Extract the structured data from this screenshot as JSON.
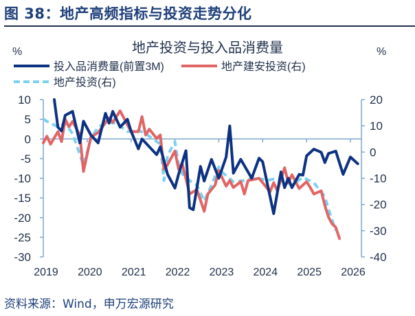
{
  "figure_title": "图 38：地产高频指标与投资走势分化",
  "source": "资料来源：Wind，申万宏源研究",
  "colors": {
    "title": "#1f3f7a",
    "axis": "#7ea6d0",
    "dark_blue": "#0d3282",
    "red": "#e06666",
    "light_blue": "#7dd0f0"
  },
  "chart_data": {
    "type": "line",
    "title": "地产投资与投入品消费量",
    "left_unit": "%",
    "right_unit": "%",
    "ylim_left": [
      -30,
      10
    ],
    "yticks_left": [
      "10",
      "5",
      "0",
      "-5",
      "-10",
      "-15",
      "-20",
      "-25",
      "-30"
    ],
    "ylim_right": [
      -40,
      20
    ],
    "yticks_right": [
      "20",
      "10",
      "0",
      "-10",
      "-20",
      "-30",
      "-40"
    ],
    "xlim": [
      "2019-01",
      "2026-04"
    ],
    "xticks": [
      "2019",
      "2020",
      "2021",
      "2022",
      "2023",
      "2024",
      "2025",
      "2026"
    ],
    "grid": false,
    "legend_position": "top-left",
    "series": [
      {
        "name": "投入品消费量(前置3M)",
        "axis": "left",
        "style": "solid",
        "color": "#0d3282",
        "points": [
          [
            "2019-04",
            10
          ],
          [
            "2019-05",
            3
          ],
          [
            "2019-06",
            2
          ],
          [
            "2019-07",
            6
          ],
          [
            "2019-09",
            7
          ],
          [
            "2019-11",
            -1
          ],
          [
            "2019-12",
            4.5
          ],
          [
            "2020-02",
            1
          ],
          [
            "2020-04",
            -1
          ],
          [
            "2020-06",
            6.5
          ],
          [
            "2020-07",
            4
          ],
          [
            "2020-08",
            7
          ],
          [
            "2020-10",
            3
          ],
          [
            "2020-12",
            5
          ],
          [
            "2021-01",
            2
          ],
          [
            "2021-03",
            -2.5
          ],
          [
            "2021-04",
            0
          ],
          [
            "2021-06",
            -2
          ],
          [
            "2021-08",
            -4
          ],
          [
            "2021-09",
            -2
          ],
          [
            "2021-11",
            -9
          ],
          [
            "2022-01",
            -12.5
          ],
          [
            "2022-02",
            -9
          ],
          [
            "2022-04",
            -3
          ],
          [
            "2022-05",
            -17.5
          ],
          [
            "2022-06",
            -18
          ],
          [
            "2022-08",
            -7
          ],
          [
            "2022-09",
            -10.7
          ],
          [
            "2022-11",
            -5.2
          ],
          [
            "2023-01",
            -10
          ],
          [
            "2023-03",
            -4.6
          ],
          [
            "2023-04",
            3.3
          ],
          [
            "2023-05",
            -8.7
          ],
          [
            "2023-07",
            -5.2
          ],
          [
            "2023-10",
            -10
          ],
          [
            "2023-12",
            -4.9
          ],
          [
            "2024-01",
            -5.8
          ],
          [
            "2024-04",
            -19
          ],
          [
            "2024-06",
            -8.4
          ],
          [
            "2024-07",
            -12.4
          ],
          [
            "2024-08",
            -10
          ],
          [
            "2024-09",
            -12.4
          ],
          [
            "2024-11",
            -9
          ],
          [
            "2024-12",
            -9.2
          ],
          [
            "2025-01",
            -4.3
          ],
          [
            "2025-03",
            -2.6
          ],
          [
            "2025-05",
            -3.4
          ],
          [
            "2025-06",
            -6
          ],
          [
            "2025-07",
            -3.7
          ],
          [
            "2025-09",
            -3.1
          ],
          [
            "2025-11",
            -9
          ],
          [
            "2026-01",
            -4.6
          ],
          [
            "2026-03",
            -6.3
          ]
        ]
      },
      {
        "name": "地产建安投资(右)",
        "axis": "right",
        "style": "solid",
        "color": "#e06666",
        "points": [
          [
            "2019-01",
            3.5
          ],
          [
            "2019-02",
            6
          ],
          [
            "2019-03",
            3
          ],
          [
            "2019-05",
            7.8
          ],
          [
            "2019-06",
            4
          ],
          [
            "2019-07",
            12.6
          ],
          [
            "2019-08",
            9.6
          ],
          [
            "2019-09",
            11.7
          ],
          [
            "2019-11",
            6.5
          ],
          [
            "2019-12",
            -7.4
          ],
          [
            "2020-02",
            5.7
          ],
          [
            "2020-04",
            7.4
          ],
          [
            "2020-07",
            13
          ],
          [
            "2020-08",
            11.3
          ],
          [
            "2020-10",
            15.7
          ],
          [
            "2021-01",
            7.8
          ],
          [
            "2021-03",
            7.8
          ],
          [
            "2021-04",
            13.5
          ],
          [
            "2021-05",
            6.5
          ],
          [
            "2021-06",
            8.7
          ],
          [
            "2021-08",
            5.2
          ],
          [
            "2021-09",
            6.5
          ],
          [
            "2021-10",
            -6.5
          ],
          [
            "2021-11",
            -4.8
          ],
          [
            "2022-01",
            0.4
          ],
          [
            "2022-02",
            -6.5
          ],
          [
            "2022-03",
            -4.3
          ],
          [
            "2022-05",
            -16
          ],
          [
            "2022-07",
            -14.3
          ],
          [
            "2022-09",
            -22.6
          ],
          [
            "2022-10",
            -16
          ],
          [
            "2022-12",
            -12.6
          ],
          [
            "2023-01",
            -7
          ],
          [
            "2023-03",
            -13
          ],
          [
            "2023-04",
            -10.9
          ],
          [
            "2023-05",
            -13.5
          ],
          [
            "2023-07",
            -11.3
          ],
          [
            "2023-08",
            -16
          ],
          [
            "2023-09",
            -10.9
          ],
          [
            "2023-12",
            -10
          ],
          [
            "2024-03",
            -15.2
          ],
          [
            "2024-04",
            -11.7
          ],
          [
            "2024-05",
            -14.8
          ],
          [
            "2024-07",
            -6
          ],
          [
            "2024-08",
            -11.7
          ],
          [
            "2024-09",
            -8.7
          ],
          [
            "2024-11",
            -13.9
          ],
          [
            "2025-01",
            -11.3
          ],
          [
            "2025-02",
            -13.5
          ],
          [
            "2025-03",
            -16
          ],
          [
            "2025-05",
            -14.8
          ],
          [
            "2025-06",
            -20.4
          ],
          [
            "2025-07",
            -24.8
          ],
          [
            "2025-08",
            -27.4
          ],
          [
            "2025-09",
            -28.7
          ],
          [
            "2025-10",
            -33
          ]
        ]
      },
      {
        "name": "地产投资(右)",
        "axis": "right",
        "style": "dashed",
        "color": "#7dd0f0",
        "points": [
          [
            "2019-01",
            12.6
          ],
          [
            "2019-02",
            11.7
          ],
          [
            "2019-05",
            9.6
          ],
          [
            "2019-07",
            10.9
          ],
          [
            "2019-09",
            7
          ],
          [
            "2019-12",
            -5
          ],
          [
            "2020-02",
            5
          ],
          [
            "2020-04",
            9.6
          ],
          [
            "2020-07",
            11.3
          ],
          [
            "2020-09",
            10.9
          ],
          [
            "2020-12",
            7.8
          ],
          [
            "2021-03",
            8.3
          ],
          [
            "2021-05",
            7
          ],
          [
            "2021-09",
            3
          ],
          [
            "2021-10",
            -10.9
          ],
          [
            "2021-11",
            -1.3
          ],
          [
            "2022-01",
            3.9
          ],
          [
            "2022-02",
            -4.8
          ],
          [
            "2022-03",
            -8.3
          ],
          [
            "2022-05",
            -10.9
          ],
          [
            "2022-07",
            -12.6
          ],
          [
            "2022-09",
            -18.7
          ],
          [
            "2022-11",
            -12.6
          ],
          [
            "2023-01",
            -5.7
          ],
          [
            "2023-02",
            -7.8
          ],
          [
            "2023-05",
            -11.3
          ],
          [
            "2023-08",
            -10.9
          ],
          [
            "2023-11",
            -9.6
          ],
          [
            "2024-02",
            -10.9
          ],
          [
            "2024-05",
            -10
          ],
          [
            "2024-09",
            -12.6
          ],
          [
            "2024-12",
            -9.6
          ],
          [
            "2025-03",
            -11.7
          ],
          [
            "2025-06",
            -17
          ],
          [
            "2025-07",
            -21.7
          ],
          [
            "2025-09",
            -30
          ]
        ]
      }
    ]
  }
}
